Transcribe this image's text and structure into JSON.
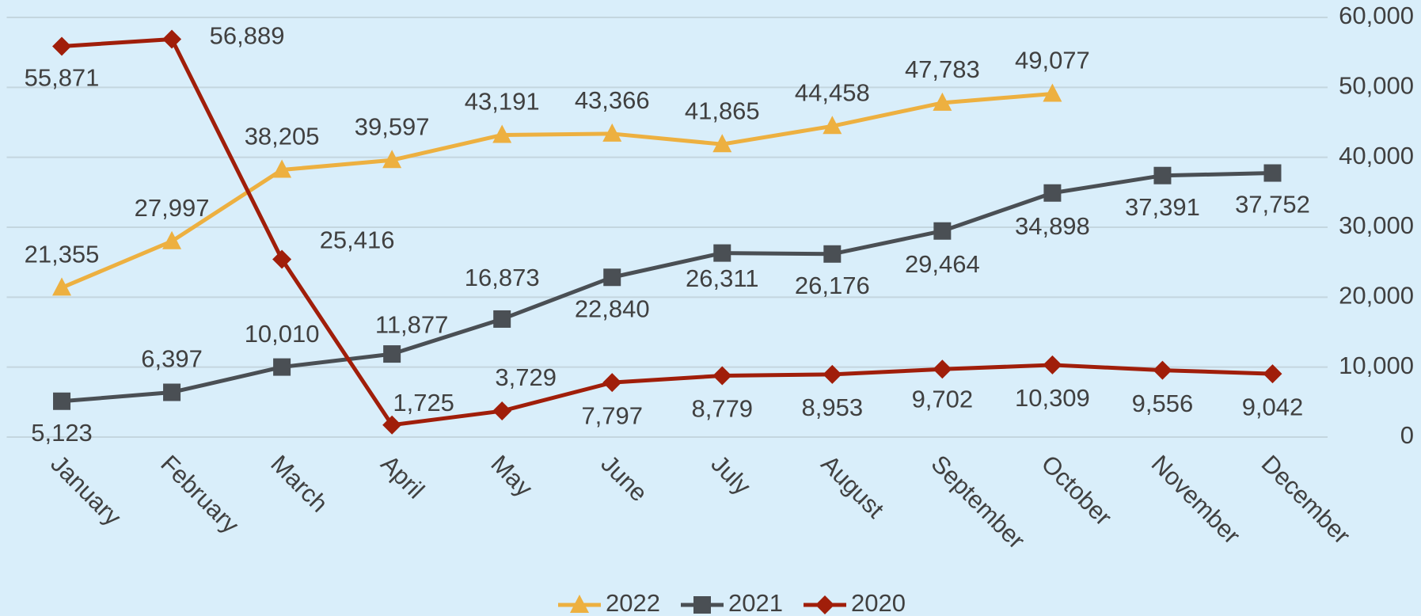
{
  "chart_data": {
    "type": "line",
    "categories": [
      "January",
      "February",
      "March",
      "April",
      "May",
      "June",
      "July",
      "August",
      "September",
      "October",
      "November",
      "December"
    ],
    "series": [
      {
        "name": "2022",
        "color": "#edb040",
        "marker": "triangle",
        "values": [
          21355,
          27997,
          38205,
          39597,
          43191,
          43366,
          41865,
          44458,
          47783,
          49077,
          null,
          null
        ],
        "value_labels": [
          "21,355",
          "27,997",
          "38,205",
          "39,597",
          "43,191",
          "43,366",
          "41,865",
          "44,458",
          "47,783",
          "49,077",
          null,
          null
        ]
      },
      {
        "name": "2021",
        "color": "#4a4f54",
        "marker": "square",
        "values": [
          5123,
          6397,
          10010,
          11877,
          16873,
          22840,
          26311,
          26176,
          29464,
          34898,
          37391,
          37752
        ],
        "value_labels": [
          "5,123",
          "6,397",
          "10,010",
          "11,877",
          "16,873",
          "22,840",
          "26,311",
          "26,176",
          "29,464",
          "34,898",
          "37,391",
          "37,752"
        ]
      },
      {
        "name": "2020",
        "color": "#a01e0a",
        "marker": "diamond",
        "values": [
          55871,
          56889,
          25416,
          1725,
          3729,
          7797,
          8779,
          8953,
          9702,
          10309,
          9556,
          9042
        ],
        "value_labels": [
          "55,871",
          "56,889",
          "25,416",
          "1,725",
          "3,729",
          "7,797",
          "8,779",
          "8,953",
          "9,702",
          "10,309",
          "9,556",
          "9,042"
        ]
      }
    ],
    "ylim": [
      0,
      60000
    ],
    "yticks": [
      0,
      {
        "value": 10000,
        "label": "10,000"
      },
      {
        "value": 20000,
        "label": "20,000"
      },
      {
        "value": 30000,
        "label": "30,000"
      },
      {
        "value": 40000,
        "label": "40,000"
      },
      {
        "value": 50000,
        "label": "50,000"
      },
      {
        "value": 60000,
        "label": "60,000"
      }
    ],
    "y_axis_side": "right",
    "grid": true,
    "legend": "bottom"
  }
}
